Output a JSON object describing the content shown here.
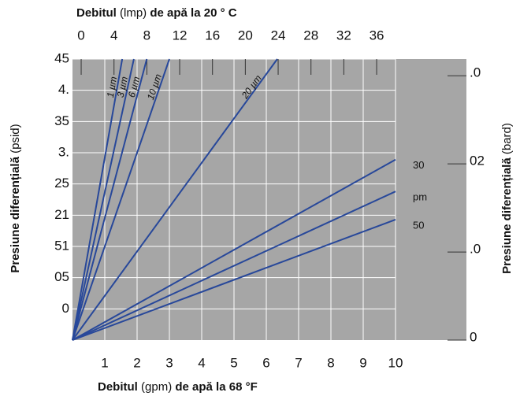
{
  "chart_data": {
    "type": "line",
    "x2label_parts": [
      "Debitul",
      "(lmp)",
      "de apă la 20 ° C"
    ],
    "xlabel_parts": [
      "Debitul",
      "(gpm)",
      "de apă la 68 °F"
    ],
    "ylabel_parts": [
      "Presiune diferențială",
      "(psid)"
    ],
    "y2label_parts": [
      "Presiune diferențială",
      "(bard)"
    ],
    "xlim": [
      0,
      10
    ],
    "xticks": [
      1,
      2,
      3,
      4,
      5,
      6,
      7,
      8,
      9,
      10
    ],
    "x2lim": [
      -1.06,
      38.3
    ],
    "x2ticks": [
      0,
      4,
      8,
      12,
      16,
      20,
      24,
      28,
      32,
      36
    ],
    "ylim": [
      0,
      45
    ],
    "yticks": [
      45,
      {
        "value": 40,
        "label": "4."
      },
      35,
      {
        "value": 30,
        "label": "3."
      },
      25,
      {
        "value": 20,
        "label": "21"
      },
      {
        "value": 15,
        "label": "51"
      },
      {
        "value": 10,
        "label": "05"
      },
      {
        "value": 5,
        "label": "0"
      }
    ],
    "y2lim": [
      0,
      3.19
    ],
    "y2ticks": [
      {
        "value": 3,
        "label": ".0"
      },
      {
        "value": 2,
        "label": "02"
      },
      {
        "value": 1,
        "label": ".0"
      },
      0
    ],
    "grid": true,
    "series": [
      {
        "name": "1 µm",
        "color": "#28489a",
        "x": [
          0,
          1.54
        ],
        "values": [
          0,
          45
        ]
      },
      {
        "name": "3 µm",
        "color": "#28489a",
        "x": [
          0,
          1.9
        ],
        "values": [
          0,
          45
        ]
      },
      {
        "name": "6 µm",
        "color": "#28489a",
        "x": [
          0,
          2.3
        ],
        "values": [
          0,
          45
        ]
      },
      {
        "name": "10 µm",
        "color": "#28489a",
        "x": [
          0,
          3.0
        ],
        "values": [
          0,
          45
        ]
      },
      {
        "name": "20 µm",
        "color": "#28489a",
        "x": [
          0,
          6.34
        ],
        "values": [
          0,
          45
        ]
      },
      {
        "name": "30",
        "color": "#28489a",
        "x": [
          0,
          10
        ],
        "values": [
          0,
          28.9
        ]
      },
      {
        "name": "pm",
        "color": "#28489a",
        "x": [
          0,
          10
        ],
        "values": [
          0,
          23.8
        ]
      },
      {
        "name": "50",
        "color": "#28489a",
        "x": [
          0,
          10
        ],
        "values": [
          0,
          19.3
        ]
      }
    ]
  }
}
